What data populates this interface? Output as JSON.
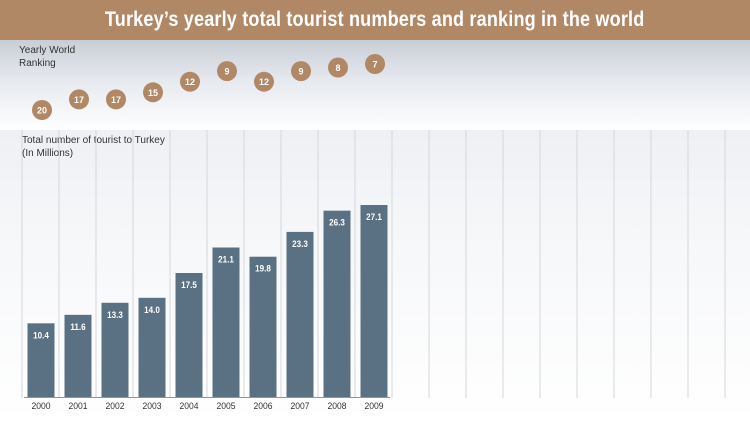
{
  "title": "Turkey’s yearly total tourist numbers and ranking in the world",
  "ranking_label": [
    "Yearly World",
    "Ranking"
  ],
  "tourist_label": [
    "Total number of tourist to Turkey",
    "(In Millions)"
  ],
  "colors": {
    "title_bar": "#b08865",
    "bar": "#5a7183",
    "bubble": "#b08865",
    "text": "#333333"
  },
  "chart_data": [
    {
      "type": "bar",
      "title": "Total number of tourist to Turkey (In Millions)",
      "categories": [
        "2000",
        "2001",
        "2002",
        "2003",
        "2004",
        "2005",
        "2006",
        "2007",
        "2008",
        "2009"
      ],
      "values": [
        10.4,
        11.6,
        13.3,
        14.0,
        17.5,
        21.1,
        19.8,
        23.3,
        26.3,
        27.1
      ],
      "value_labels": [
        "10.4",
        "11.6",
        "13.3",
        "14.0",
        "17.5",
        "21.1",
        "19.8",
        "23.3",
        "26.3",
        "27.1"
      ],
      "ylim": [
        0,
        28
      ],
      "grid": true
    },
    {
      "type": "scatter",
      "title": "Yearly World Ranking",
      "categories": [
        "2000",
        "2001",
        "2002",
        "2003",
        "2004",
        "2005",
        "2006",
        "2007",
        "2008",
        "2009"
      ],
      "values": [
        20,
        17,
        17,
        15,
        12,
        9,
        12,
        9,
        8,
        7
      ],
      "ylim": [
        7,
        20
      ],
      "inverted": true
    }
  ]
}
